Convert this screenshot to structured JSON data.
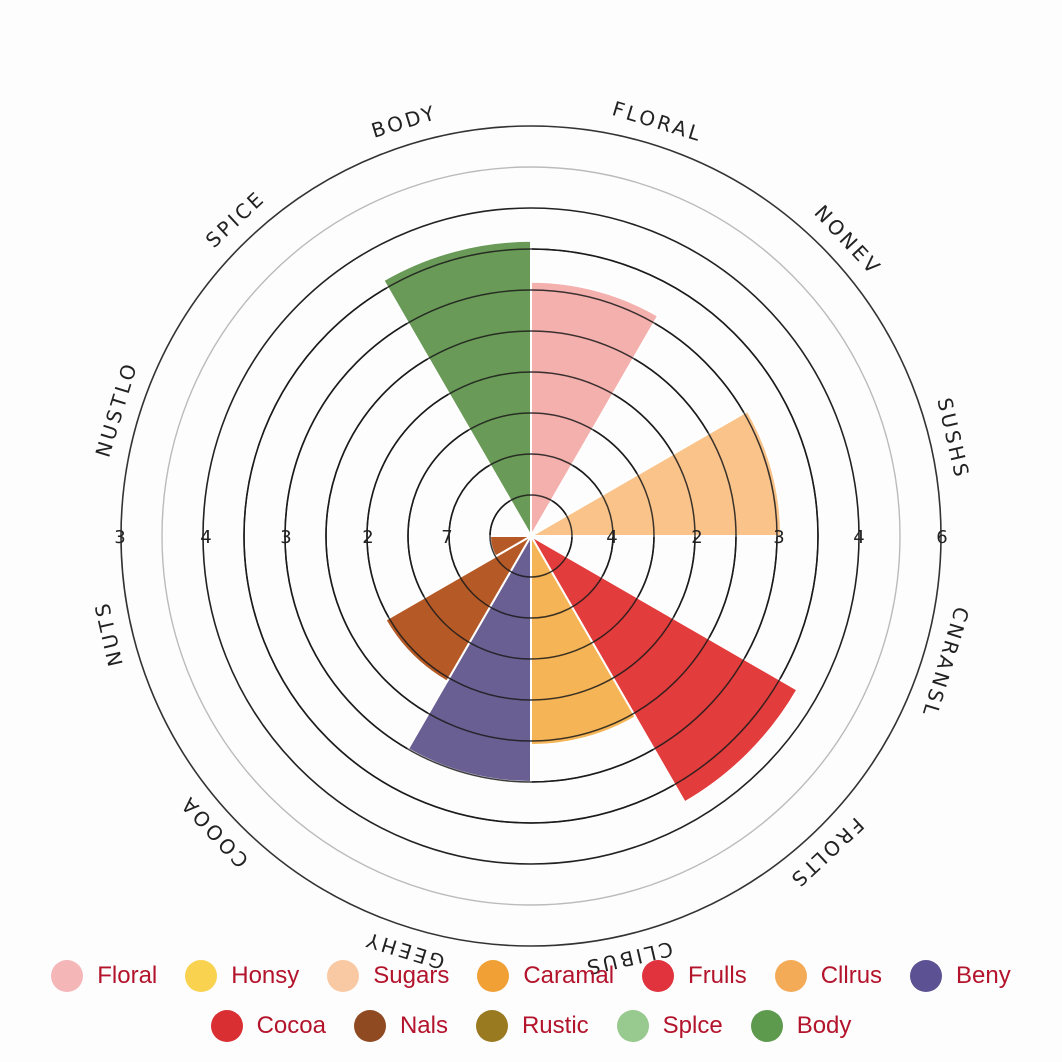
{
  "chart_data": {
    "type": "polar-area",
    "rlim": [
      0,
      6
    ],
    "center_value_labels": [
      "3",
      "4",
      "3",
      "2",
      "7",
      "4",
      "2",
      "3",
      "4",
      "6"
    ],
    "rim_labels": [
      "BODY",
      "FLORAL",
      "NONEV",
      "SUSHS",
      "CNRANSL",
      "FROLTS",
      "CLIBUS",
      "GEEHY",
      "COOOA",
      "NUTS",
      "NUSTLO",
      "SPICE"
    ],
    "wedges": [
      {
        "label": "Floral",
        "start_deg": 0,
        "end_deg": 30,
        "value": 3.1,
        "color": "#f4b0ad"
      },
      {
        "label": "Sugars",
        "start_deg": 60,
        "end_deg": 90,
        "value": 3.05,
        "color": "#f9c38a"
      },
      {
        "label": "Frulls",
        "start_deg": 120,
        "end_deg": 150,
        "value": 3.75,
        "color": "#e23c3c"
      },
      {
        "label": "Caramal",
        "start_deg": 150,
        "end_deg": 180,
        "value": 2.55,
        "color": "#f5b455"
      },
      {
        "label": "Beny",
        "start_deg": 180,
        "end_deg": 210,
        "value": 3.0,
        "color": "#6a5f93"
      },
      {
        "label": "Nals",
        "start_deg": 210,
        "end_deg": 240,
        "value": 2.05,
        "color": "#b55a26"
      },
      {
        "label": "Nals",
        "start_deg": 240,
        "end_deg": 270,
        "value": 0.5,
        "color": "#b55a26"
      },
      {
        "label": "Body",
        "start_deg": 330,
        "end_deg": 360,
        "value": 3.6,
        "color": "#6a9a57"
      }
    ],
    "legend": [
      {
        "label": "Floral",
        "color": "#f5b6b8"
      },
      {
        "label": "Honsy",
        "color": "#f9d24f"
      },
      {
        "label": "Sugars",
        "color": "#f9c9a4"
      },
      {
        "label": "Caramal",
        "color": "#f0a035"
      },
      {
        "label": "Frulls",
        "color": "#e0333e"
      },
      {
        "label": "Cllrus",
        "color": "#f4ab58"
      },
      {
        "label": "Beny",
        "color": "#5c5293"
      },
      {
        "label": "Cocoa",
        "color": "#d92f33"
      },
      {
        "label": "Nals",
        "color": "#8f4a22"
      },
      {
        "label": "Rustic",
        "color": "#9a7a20"
      },
      {
        "label": "Splce",
        "color": "#98c98e"
      },
      {
        "label": "Body",
        "color": "#5e9a4e"
      }
    ]
  }
}
